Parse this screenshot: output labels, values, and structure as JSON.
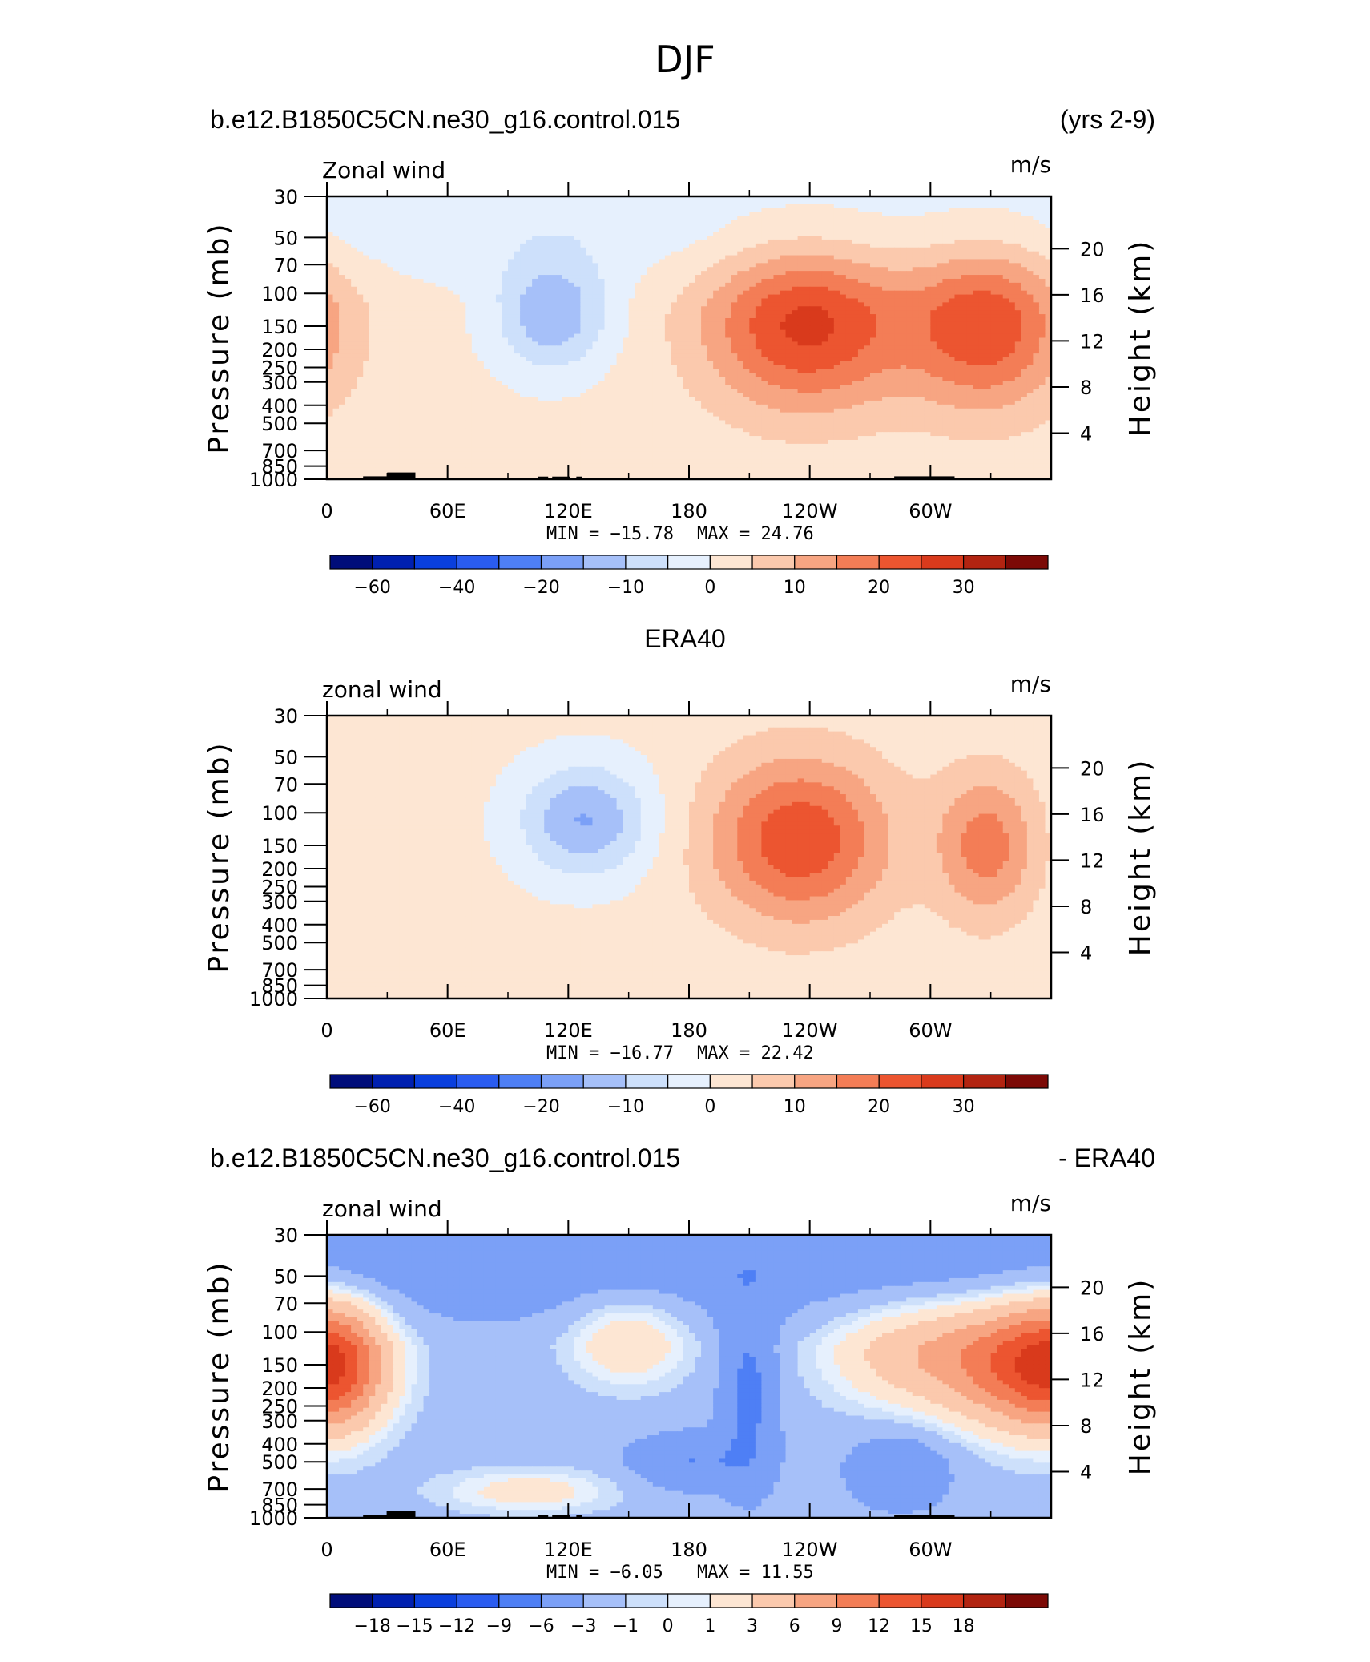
{
  "page_title": "DJF",
  "chart_data": [
    {
      "type": "heatmap",
      "heading_left": "b.e12.B1850C5CN.ne30_g16.control.015",
      "heading_right": "(yrs 2-9)",
      "variable_label": "Zonal wind",
      "units": "m/s",
      "xlabel": "",
      "ylabel": "Pressure (mb)",
      "ylabel_right": "Height (km)",
      "x_ticks": [
        "0",
        "60E",
        "120E",
        "180",
        "120W",
        "60W"
      ],
      "x_tick_lon": [
        0,
        60,
        120,
        180,
        240,
        300
      ],
      "xlim": [
        0,
        360
      ],
      "y_ticks": [
        "30",
        "50",
        "70",
        "100",
        "150",
        "200",
        "250",
        "300",
        "400",
        "500",
        "700",
        "850",
        "1000"
      ],
      "y_tick_values": [
        30,
        50,
        70,
        100,
        150,
        200,
        250,
        300,
        400,
        500,
        700,
        850,
        1000
      ],
      "ylim": [
        1000,
        30
      ],
      "y_scale": "log",
      "height_ticks": [
        "4",
        "8",
        "12",
        "16",
        "20"
      ],
      "height_values_km": [
        4,
        8,
        12,
        16,
        20
      ],
      "min_label": "MIN =  −15.78",
      "max_label": "MAX =   24.76",
      "min": -15.78,
      "max": 24.76,
      "contour_levels": [
        -70,
        -60,
        -50,
        -40,
        -30,
        -20,
        -15,
        -10,
        -5,
        0,
        5,
        10,
        15,
        20,
        25,
        30,
        40
      ],
      "colorbar_labels": [
        "−60",
        "−40",
        "−20",
        "−10",
        "0",
        "10",
        "20",
        "30"
      ],
      "colorbar_label_bins": [
        1,
        3,
        5,
        7,
        9,
        11,
        13,
        15
      ],
      "features": [
        {
          "type": "jet_core",
          "lon_center": 238,
          "pressure_center": 150,
          "peak": 24.76,
          "lon_halfwidth": 50,
          "log_halfwidth": 0.45
        },
        {
          "type": "jet_core",
          "lon_center": 328,
          "pressure_center": 150,
          "peak": 22,
          "lon_halfwidth": 40,
          "log_halfwidth": 0.45
        },
        {
          "type": "easterly",
          "lon_center": 112,
          "pressure_center": 130,
          "peak": -15.78,
          "lon_halfwidth": 28,
          "log_halfwidth": 0.3
        }
      ],
      "background_stratosphere": -3,
      "background_troposphere": 1.5
    },
    {
      "type": "heatmap",
      "heading_left": "",
      "heading_center": "ERA40",
      "heading_right": "",
      "variable_label": "zonal wind",
      "units": "m/s",
      "xlabel": "",
      "ylabel": "Pressure (mb)",
      "ylabel_right": "Height (km)",
      "x_ticks": [
        "0",
        "60E",
        "120E",
        "180",
        "120W",
        "60W"
      ],
      "x_tick_lon": [
        0,
        60,
        120,
        180,
        240,
        300
      ],
      "xlim": [
        0,
        360
      ],
      "y_ticks": [
        "30",
        "50",
        "70",
        "100",
        "150",
        "200",
        "250",
        "300",
        "400",
        "500",
        "700",
        "850",
        "1000"
      ],
      "y_tick_values": [
        30,
        50,
        70,
        100,
        150,
        200,
        250,
        300,
        400,
        500,
        700,
        850,
        1000
      ],
      "ylim": [
        1000,
        30
      ],
      "y_scale": "log",
      "height_ticks": [
        "4",
        "8",
        "12",
        "16",
        "20"
      ],
      "height_values_km": [
        4,
        8,
        12,
        16,
        20
      ],
      "min_label": "MIN =  −16.77",
      "max_label": "MAX =   22.42",
      "min": -16.77,
      "max": 22.42,
      "contour_levels": [
        -70,
        -60,
        -50,
        -40,
        -30,
        -20,
        -15,
        -10,
        -5,
        0,
        5,
        10,
        15,
        20,
        25,
        30,
        40
      ],
      "colorbar_labels": [
        "−60",
        "−40",
        "−20",
        "−10",
        "0",
        "10",
        "20",
        "30"
      ],
      "colorbar_label_bins": [
        1,
        3,
        5,
        7,
        9,
        11,
        13,
        15
      ],
      "features": [
        {
          "type": "jet_core",
          "lon_center": 235,
          "pressure_center": 140,
          "peak": 22.42,
          "lon_halfwidth": 45,
          "log_halfwidth": 0.45
        },
        {
          "type": "jet_core",
          "lon_center": 328,
          "pressure_center": 150,
          "peak": 16,
          "lon_halfwidth": 25,
          "log_halfwidth": 0.4
        },
        {
          "type": "easterly",
          "lon_center": 128,
          "pressure_center": 110,
          "peak": -16.77,
          "lon_halfwidth": 32,
          "log_halfwidth": 0.3
        }
      ],
      "background_stratosphere": 1.5,
      "background_troposphere": 1.5
    },
    {
      "type": "heatmap",
      "heading_left": "b.e12.B1850C5CN.ne30_g16.control.015",
      "heading_right": "- ERA40",
      "variable_label": "zonal wind",
      "units": "m/s",
      "xlabel": "",
      "ylabel": "Pressure (mb)",
      "ylabel_right": "Height (km)",
      "x_ticks": [
        "0",
        "60E",
        "120E",
        "180",
        "120W",
        "60W"
      ],
      "x_tick_lon": [
        0,
        60,
        120,
        180,
        240,
        300
      ],
      "xlim": [
        0,
        360
      ],
      "y_ticks": [
        "30",
        "50",
        "70",
        "100",
        "150",
        "200",
        "250",
        "300",
        "400",
        "500",
        "700",
        "850",
        "1000"
      ],
      "y_tick_values": [
        30,
        50,
        70,
        100,
        150,
        200,
        250,
        300,
        400,
        500,
        700,
        850,
        1000
      ],
      "ylim": [
        1000,
        30
      ],
      "y_scale": "log",
      "height_ticks": [
        "4",
        "8",
        "12",
        "16",
        "20"
      ],
      "height_values_km": [
        4,
        8,
        12,
        16,
        20
      ],
      "min_label": "MIN =    −6.05",
      "max_label": "MAX =   11.55",
      "min": -6.05,
      "max": 11.55,
      "contour_levels": [
        -21,
        -18,
        -15,
        -12,
        -9,
        -6,
        -3,
        -1,
        0,
        1,
        3,
        6,
        9,
        12,
        15,
        18,
        21
      ],
      "colorbar_labels": [
        "−18",
        "−15",
        "−12",
        "−9",
        "−6",
        "−3",
        "−1",
        "0",
        "1",
        "3",
        "6",
        "9",
        "12",
        "15",
        "18"
      ],
      "colorbar_label_bins": [
        1,
        2,
        3,
        4,
        5,
        6,
        7,
        8,
        9,
        10,
        11,
        12,
        13,
        14,
        15
      ],
      "features": [
        {
          "type": "positive",
          "lon_center": 345,
          "pressure_center": 150,
          "peak": 11.55,
          "lon_halfwidth": 40,
          "log_halfwidth": 0.35
        },
        {
          "type": "positive",
          "lon_center": 5,
          "pressure_center": 150,
          "peak": 9,
          "lon_halfwidth": 25,
          "log_halfwidth": 0.35
        },
        {
          "type": "positive",
          "lon_center": 150,
          "pressure_center": 110,
          "peak": 5,
          "lon_halfwidth": 30,
          "log_halfwidth": 0.25
        },
        {
          "type": "positive",
          "lon_center": 290,
          "pressure_center": 130,
          "peak": 6,
          "lon_halfwidth": 45,
          "log_halfwidth": 0.3
        },
        {
          "type": "positive",
          "lon_center": 100,
          "pressure_center": 720,
          "peak": 4,
          "lon_halfwidth": 45,
          "log_halfwidth": 0.12
        },
        {
          "type": "negative",
          "lon_center": 210,
          "pressure_center": 200,
          "peak": -5,
          "lon_halfwidth": 14,
          "log_halfwidth": 0.5
        },
        {
          "type": "negative",
          "lon_center": 180,
          "pressure_center": 500,
          "peak": -4,
          "lon_halfwidth": 30,
          "log_halfwidth": 0.15
        },
        {
          "type": "negative",
          "lon_center": 285,
          "pressure_center": 550,
          "peak": -4,
          "lon_halfwidth": 25,
          "log_halfwidth": 0.2
        }
      ],
      "background_stratosphere": -5,
      "background_troposphere": -2
    }
  ],
  "colormap": [
    "#000d7a",
    "#0020b0",
    "#0a3fdd",
    "#2a5cf0",
    "#4e7ff5",
    "#7ba0f7",
    "#a6c0f9",
    "#cde0fb",
    "#e6f0fd",
    "#fde6d3",
    "#fbc9ad",
    "#f7a582",
    "#f37d56",
    "#ec5530",
    "#d93a1c",
    "#b22411",
    "#7c0a06"
  ],
  "topography_color": "#000000"
}
